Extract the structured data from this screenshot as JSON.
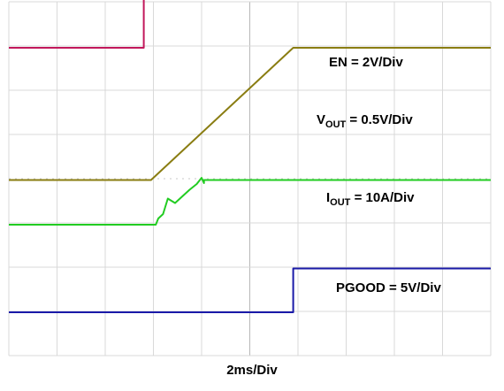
{
  "chart_data": {
    "type": "line",
    "title": "",
    "xlabel": "2ms/Div",
    "ylabel": "",
    "x_divisions": 10,
    "y_divisions": 8,
    "grid": true,
    "series": [
      {
        "name": "EN",
        "scale_label": {
          "main": "EN = 2V/Div",
          "sub": ""
        },
        "color": "#c2185b",
        "points": [
          [
            0,
            6.96
          ],
          [
            2.8,
            6.96
          ],
          [
            2.8,
            8.15
          ],
          [
            10,
            8.15
          ]
        ]
      },
      {
        "name": "VOUT",
        "scale_label": {
          "main": "V",
          "sub": "OUT",
          "rest": " = 0.5V/Div"
        },
        "color": "#8a7d12",
        "points": [
          [
            0,
            3.97
          ],
          [
            2.95,
            3.97
          ],
          [
            5.9,
            6.96
          ],
          [
            10,
            6.96
          ]
        ]
      },
      {
        "name": "IOUT",
        "scale_label": {
          "main": "I",
          "sub": "OUT",
          "rest": " = 10A/Div"
        },
        "color": "#22cc22",
        "noise": true,
        "points": [
          [
            0,
            2.96
          ],
          [
            3.05,
            2.96
          ],
          [
            3.1,
            3.1
          ],
          [
            3.2,
            3.2
          ],
          [
            3.3,
            3.55
          ],
          [
            3.45,
            3.45
          ],
          [
            3.6,
            3.6
          ],
          [
            3.75,
            3.75
          ],
          [
            3.9,
            3.88
          ],
          [
            4.0,
            4.02
          ],
          [
            4.05,
            3.9
          ],
          [
            4.05,
            3.97
          ],
          [
            10,
            3.97
          ]
        ]
      },
      {
        "name": "PGOOD",
        "scale_label": {
          "main": "PGOOD = 5V/Div",
          "sub": ""
        },
        "color": "#1a1aa8",
        "points": [
          [
            0,
            0.98
          ],
          [
            5.9,
            0.98
          ],
          [
            5.9,
            1.97
          ],
          [
            10,
            1.97
          ]
        ]
      }
    ]
  }
}
